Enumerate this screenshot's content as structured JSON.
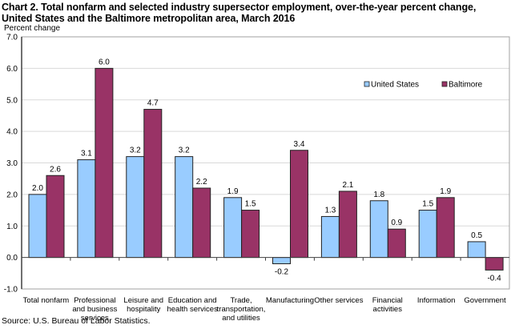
{
  "chart_data": {
    "type": "bar",
    "title_lines": [
      "Chart 2.  Total nonfarm and selected industry supersector employment,  over-the-year percent change,",
      "United States and the Baltimore metropolitan area, March 2016"
    ],
    "ylabel": "Percent change",
    "xlabel": "",
    "ylim": [
      -1.0,
      7.0
    ],
    "yticks": [
      "7.0",
      "6.0",
      "5.0",
      "4.0",
      "3.0",
      "2.0",
      "1.0",
      "0.0",
      "-1.0"
    ],
    "ytick_values": [
      7,
      6,
      5,
      4,
      3,
      2,
      1,
      0,
      -1
    ],
    "grid": true,
    "legend_position": "top-right",
    "categories": [
      [
        "Total nonfarm"
      ],
      [
        "Professional",
        "and business",
        "services"
      ],
      [
        "Leisure and",
        "hospitality"
      ],
      [
        "Education and",
        "health services"
      ],
      [
        "Trade,",
        "transportation,",
        "and utilities"
      ],
      [
        "Manufacturing"
      ],
      [
        "Other services"
      ],
      [
        "Financial",
        "activities"
      ],
      [
        "Information"
      ],
      [
        "Government"
      ]
    ],
    "series": [
      {
        "name": "United States",
        "color": "#99CCFF",
        "values": [
          2.0,
          3.1,
          3.2,
          3.2,
          1.9,
          -0.2,
          1.3,
          1.8,
          1.5,
          0.5
        ]
      },
      {
        "name": "Baltimore",
        "color": "#993366",
        "values": [
          2.6,
          6.0,
          4.7,
          2.2,
          1.5,
          3.4,
          2.1,
          0.9,
          1.9,
          -0.4
        ]
      }
    ]
  },
  "source": "Source: U.S. Bureau of Labor Statistics."
}
